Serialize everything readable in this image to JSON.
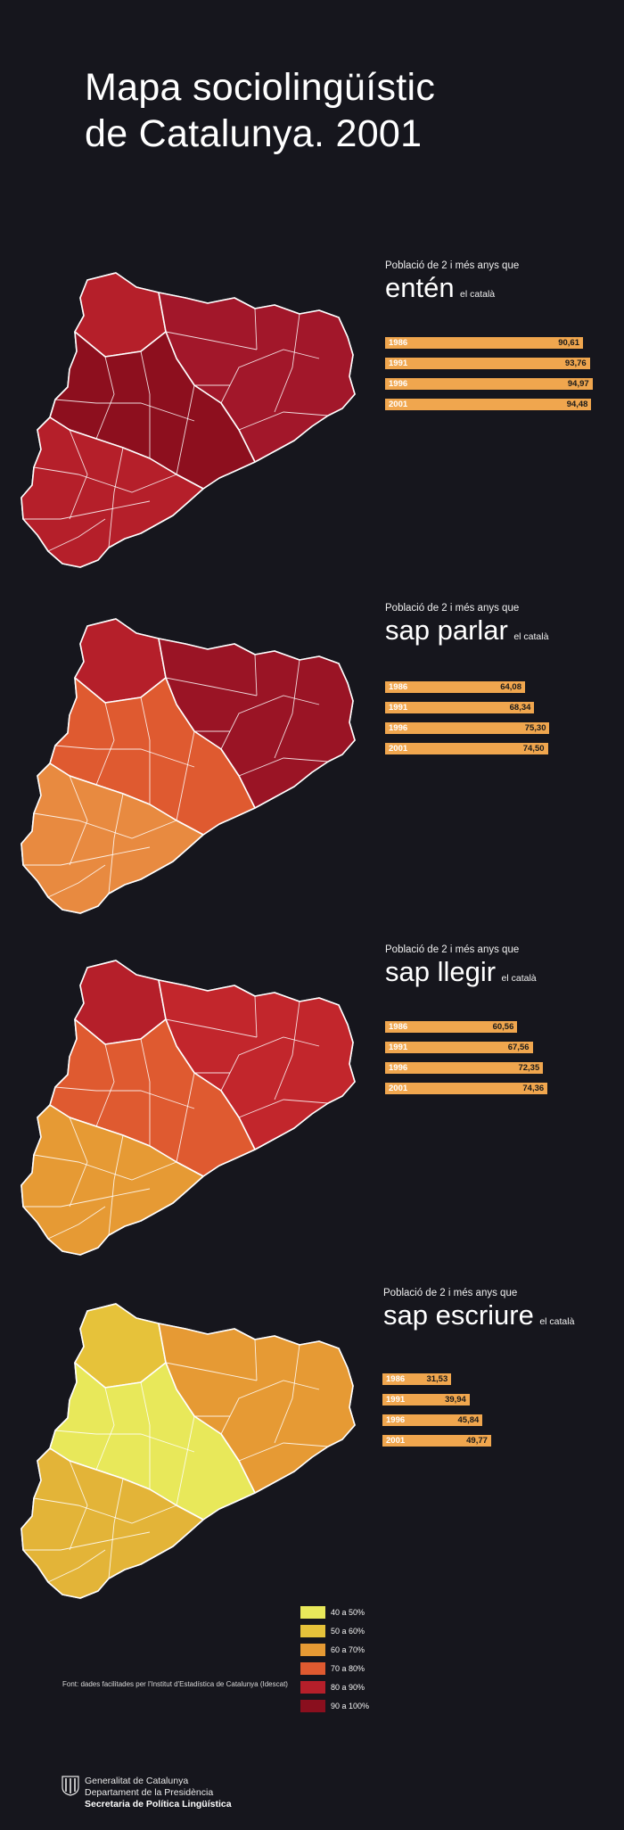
{
  "title": {
    "line1": "Mapa sociolingüístic",
    "line2": "de Catalunya. 2001"
  },
  "panels": [
    {
      "subtitle": "Població de 2 i més anys que",
      "verb": "entén",
      "suffix": "el català",
      "bars": [
        {
          "year": "1986",
          "label": "90,61"
        },
        {
          "year": "1991",
          "label": "93,76"
        },
        {
          "year": "1996",
          "label": "94,97"
        },
        {
          "year": "2001",
          "label": "94,48"
        }
      ]
    },
    {
      "subtitle": "Població de 2 i més anys que",
      "verb": "sap parlar",
      "suffix": "el català",
      "bars": [
        {
          "year": "1986",
          "label": "64,08"
        },
        {
          "year": "1991",
          "label": "68,34"
        },
        {
          "year": "1996",
          "label": "75,30"
        },
        {
          "year": "2001",
          "label": "74,50"
        }
      ]
    },
    {
      "subtitle": "Població de 2 i més anys que",
      "verb": "sap llegir",
      "suffix": "el català",
      "bars": [
        {
          "year": "1986",
          "label": "60,56"
        },
        {
          "year": "1991",
          "label": "67,56"
        },
        {
          "year": "1996",
          "label": "72,35"
        },
        {
          "year": "2001",
          "label": "74,36"
        }
      ]
    },
    {
      "subtitle": "Població de 2 i més anys que",
      "verb": "sap escriure",
      "suffix": "el català",
      "bars": [
        {
          "year": "1986",
          "label": "31,53"
        },
        {
          "year": "1991",
          "label": "39,94"
        },
        {
          "year": "1996",
          "label": "45,84"
        },
        {
          "year": "2001",
          "label": "49,77"
        }
      ]
    }
  ],
  "legend": [
    {
      "label": "40 a 50%",
      "color": "#e8e85a"
    },
    {
      "label": "50 a 60%",
      "color": "#e6c23a"
    },
    {
      "label": "60 a 70%",
      "color": "#e69a34"
    },
    {
      "label": "70 a 80%",
      "color": "#df5a30"
    },
    {
      "label": "80 a 90%",
      "color": "#b51f2a"
    },
    {
      "label": "90 a 100%",
      "color": "#8a0f1e"
    }
  ],
  "source": "Font: dades facilitades per l'Institut d'Estadística de Catalunya (Idescat)",
  "footer": {
    "line1": "Generalitat de Catalunya",
    "line2": "Departament de la Presidència",
    "line3": "Secretaria de Política Lingüística"
  },
  "chart_data": [
    {
      "type": "bar",
      "title": "Població de 2 i més anys que entén el català",
      "categories": [
        "1986",
        "1991",
        "1996",
        "2001"
      ],
      "values": [
        90.61,
        93.76,
        94.97,
        94.48
      ],
      "orientation": "horizontal",
      "map_palette": [
        "#b51f2a",
        "#a2172a",
        "#8d0f1e"
      ]
    },
    {
      "type": "bar",
      "title": "Població de 2 i més anys que sap parlar el català",
      "categories": [
        "1986",
        "1991",
        "1996",
        "2001"
      ],
      "values": [
        64.08,
        68.34,
        75.3,
        74.5
      ],
      "orientation": "horizontal",
      "map_palette": [
        "#b51f2a",
        "#9a1425",
        "#df5a30",
        "#e88a40"
      ]
    },
    {
      "type": "bar",
      "title": "Població de 2 i més anys que sap llegir el català",
      "categories": [
        "1986",
        "1991",
        "1996",
        "2001"
      ],
      "values": [
        60.56,
        67.56,
        72.35,
        74.36
      ],
      "orientation": "horizontal",
      "map_palette": [
        "#b51f2a",
        "#c2262c",
        "#df5a30",
        "#e69a34"
      ]
    },
    {
      "type": "bar",
      "title": "Població de 2 i més anys que sap escriure el català",
      "categories": [
        "1986",
        "1991",
        "1996",
        "2001"
      ],
      "values": [
        31.53,
        39.94,
        45.84,
        49.77
      ],
      "orientation": "horizontal",
      "map_palette": [
        "#e6c23a",
        "#e69a34",
        "#e8e85a",
        "#e3b438"
      ]
    }
  ]
}
